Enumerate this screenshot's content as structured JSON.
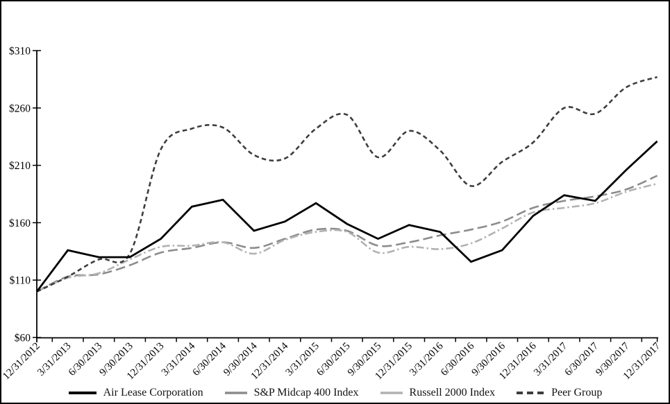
{
  "figure": {
    "background_color": "#ffffff",
    "border_color": "#000000",
    "title": ""
  },
  "y_axis": {
    "tick_labels": [
      "$310",
      "$260",
      "$210",
      "$160",
      "$110",
      "$60"
    ],
    "tick_values": [
      310,
      260,
      210,
      160,
      110,
      60
    ],
    "min": 60,
    "max": 310,
    "step": 50,
    "currency_prefix": "$"
  },
  "chart_data": {
    "type": "line",
    "title": "",
    "xlabel": "",
    "ylabel": "",
    "ylim": [
      60,
      310
    ],
    "ytick_interval": 50,
    "grid": false,
    "legend_position": "bottom",
    "x": [
      "12/31/2012",
      "3/31/2013",
      "6/30/2013",
      "9/30/2013",
      "12/31/2013",
      "3/31/2014",
      "6/30/2014",
      "9/30/2014",
      "12/31/2014",
      "3/31/2015",
      "6/30/2015",
      "9/30/2015",
      "12/31/2015",
      "3/31/2016",
      "6/30/2016",
      "9/30/2016",
      "12/31/2016",
      "3/31/2017",
      "6/30/2017",
      "9/30/2017",
      "12/31/2017"
    ],
    "series": [
      {
        "name": "Air Lease Corporation",
        "color": "#000000",
        "line_style": "solid",
        "values": [
          100,
          136,
          130,
          130,
          146,
          174,
          180,
          153,
          161,
          177,
          159,
          146,
          158,
          152,
          126,
          136,
          166,
          184,
          179,
          206,
          231
        ]
      },
      {
        "name": "S&P Midcap 400 Index",
        "color": "#8c8c8c",
        "line_style": "long-dash",
        "values": [
          100,
          113,
          115,
          123,
          134,
          138,
          143,
          138,
          146,
          154,
          153,
          140,
          143,
          149,
          154,
          161,
          173,
          179,
          183,
          189,
          201
        ]
      },
      {
        "name": "Russell 2000 Index",
        "color": "#b2b2b2",
        "line_style": "dash-dot",
        "values": [
          100,
          112,
          116,
          128,
          139,
          140,
          143,
          133,
          145,
          152,
          152,
          134,
          139,
          137,
          142,
          155,
          169,
          173,
          177,
          187,
          194
        ]
      },
      {
        "name": "Peer Group",
        "color": "#3d3d3d",
        "line_style": "short-dash",
        "values": [
          100,
          113,
          128,
          133,
          224,
          242,
          243,
          219,
          216,
          242,
          254,
          217,
          240,
          223,
          192,
          213,
          230,
          260,
          255,
          278,
          287
        ]
      }
    ]
  }
}
